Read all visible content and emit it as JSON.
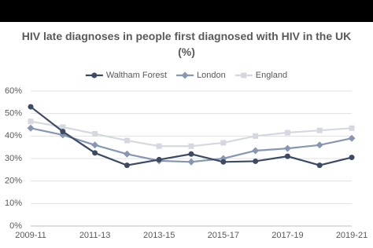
{
  "chart_data": {
    "type": "line",
    "title": "HIV late diagnoses in people first diagnosed with HIV in the UK (%)",
    "categories": [
      "2009-11",
      null,
      "2011-13",
      null,
      "2013-15",
      null,
      "2015-17",
      null,
      "2017-19",
      null,
      "2019-21"
    ],
    "series": [
      {
        "name": "Waltham Forest",
        "color": "#3c4a63",
        "marker": "circle",
        "values": [
          53,
          42,
          32.5,
          27,
          29.5,
          32,
          28.5,
          28.8,
          31,
          27,
          30.5
        ]
      },
      {
        "name": "London",
        "color": "#8796b1",
        "marker": "diamond",
        "values": [
          43.5,
          40.5,
          36,
          32,
          29,
          28.5,
          30,
          33.5,
          34.5,
          36,
          39
        ]
      },
      {
        "name": "England",
        "color": "#d5d8e0",
        "marker": "square",
        "values": [
          46.5,
          44,
          41,
          38,
          35.5,
          35.5,
          37,
          40,
          41.5,
          42.5,
          43.5
        ]
      }
    ],
    "ylim": [
      0,
      60
    ],
    "yticks": [
      {
        "value": 0,
        "label": "0%"
      },
      {
        "value": 10,
        "label": "10%"
      },
      {
        "value": 20,
        "label": "20%"
      },
      {
        "value": 30,
        "label": "30%"
      },
      {
        "value": 40,
        "label": "40%"
      },
      {
        "value": 50,
        "label": "50%"
      },
      {
        "value": 60,
        "label": "60%"
      }
    ],
    "grid": true,
    "legend": "top"
  }
}
